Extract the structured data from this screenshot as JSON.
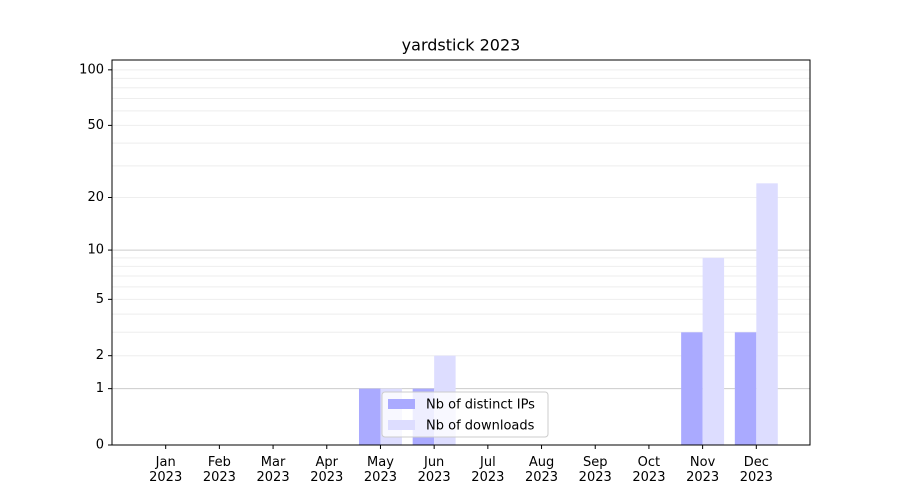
{
  "chart_data": {
    "type": "bar",
    "title": "yardstick 2023",
    "categories": [
      "Jan\n2023",
      "Feb\n2023",
      "Mar\n2023",
      "Apr\n2023",
      "May\n2023",
      "Jun\n2023",
      "Jul\n2023",
      "Aug\n2023",
      "Sep\n2023",
      "Oct\n2023",
      "Nov\n2023",
      "Dec\n2023"
    ],
    "series": [
      {
        "name": "Nb of distinct IPs",
        "color": "#aaaaff",
        "values": [
          0,
          0,
          0,
          0,
          1,
          1,
          0,
          0,
          0,
          0,
          3,
          3
        ]
      },
      {
        "name": "Nb of downloads",
        "color": "#ddddff",
        "values": [
          0,
          0,
          0,
          0,
          1,
          2,
          0,
          0,
          0,
          0,
          9,
          24
        ]
      }
    ],
    "scale": "log1p",
    "ylim": [
      0,
      113
    ],
    "yticks": [
      0,
      1,
      2,
      5,
      10,
      20,
      50,
      100
    ],
    "yminorticks": [
      3,
      4,
      6,
      7,
      8,
      9,
      30,
      40,
      60,
      70,
      80,
      90
    ],
    "grid": true,
    "legend": "lower center"
  }
}
